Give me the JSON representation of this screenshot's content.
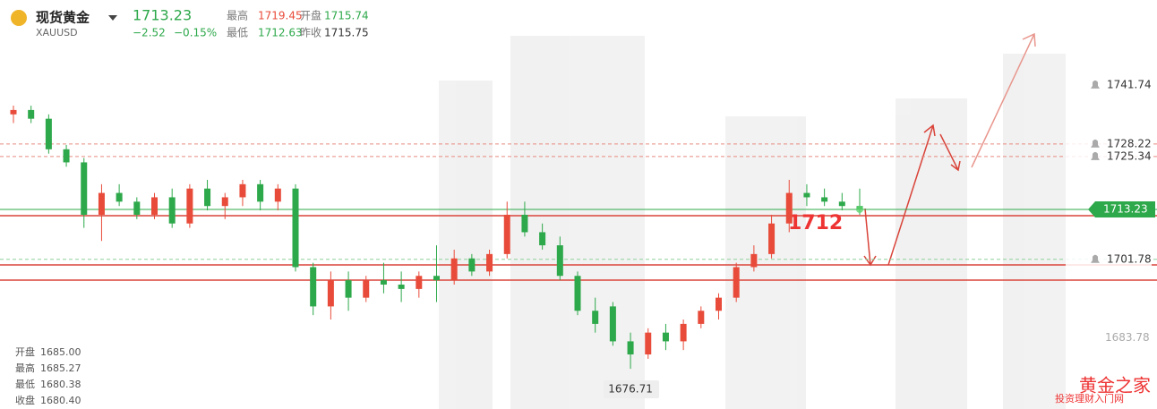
{
  "header": {
    "name": "现货黄金",
    "symbol": "XAUUSD",
    "price": "1713.23",
    "change": "−2.52",
    "change_pct": "−0.15%",
    "stats": [
      {
        "label": "最高",
        "value": "1719.45",
        "color": "#e84b3a"
      },
      {
        "label": "开盘",
        "value": "1715.74",
        "color": "#2da84a"
      },
      {
        "label": "最低",
        "value": "1712.63",
        "color": "#2da84a"
      },
      {
        "label": "昨收",
        "value": "1715.75",
        "color": "#333333"
      }
    ]
  },
  "hover_info": [
    {
      "label": "开盘",
      "value": "1685.00"
    },
    {
      "label": "最高",
      "value": "1685.27"
    },
    {
      "label": "最低",
      "value": "1680.38"
    },
    {
      "label": "收盘",
      "value": "1680.40"
    }
  ],
  "annotation": "1712",
  "watermark": {
    "title": "黄金之家",
    "subtitle": "投资理财入门网"
  },
  "chart_data": {
    "type": "candlestick",
    "up_color": "#e84b3a",
    "down_color": "#2da84a",
    "ylim": [
      1667.5,
      1761.2
    ],
    "low_label": 1676.71,
    "price_lines": [
      {
        "value": 1741.74,
        "color": "#999999",
        "style": "none",
        "label_type": "alert"
      },
      {
        "value": 1728.22,
        "color": "#e88a80",
        "style": "dashed",
        "label_type": "alert"
      },
      {
        "value": 1725.34,
        "color": "#e88a80",
        "style": "dashed",
        "label_type": "alert"
      },
      {
        "value": 1713.23,
        "color": "#2da84a",
        "style": "solid",
        "label_type": "current"
      },
      {
        "value": 1701.78,
        "color": "#8fd19e",
        "style": "dashed",
        "label_type": "alert"
      },
      {
        "value": 1683.78,
        "color": "#bbbbbb",
        "style": "none",
        "label_type": "plain"
      }
    ],
    "open": [
      1735,
      1736,
      1734,
      1727,
      1724,
      1712,
      1717,
      1715,
      1712,
      1716,
      1710,
      1718,
      1714,
      1716,
      1719,
      1715,
      1718,
      1700,
      1691,
      1697,
      1693,
      1697,
      1696,
      1695,
      1698,
      1697,
      1702,
      1699,
      1703,
      1712,
      1708,
      1705,
      1698,
      1690,
      1691,
      1683,
      1680,
      1685,
      1683,
      1687,
      1690,
      1693,
      1700,
      1703,
      1710,
      1717,
      1716,
      1715,
      1714
    ],
    "high": [
      1737,
      1737,
      1735,
      1728,
      1725,
      1719,
      1719,
      1716,
      1717,
      1718,
      1719,
      1720,
      1717,
      1720,
      1720,
      1719,
      1719,
      1701,
      1699,
      1699,
      1698,
      1701,
      1699,
      1699,
      1705,
      1704,
      1703,
      1704,
      1715,
      1715,
      1710,
      1707,
      1699,
      1693,
      1692,
      1685,
      1686,
      1687,
      1688,
      1691,
      1694,
      1701,
      1705,
      1712,
      1720,
      1719,
      1718,
      1717,
      1718
    ],
    "low": [
      1733,
      1733,
      1726,
      1723,
      1709,
      1706,
      1714,
      1711,
      1711,
      1709,
      1709,
      1713,
      1711,
      1714,
      1713,
      1713,
      1699,
      1689,
      1688,
      1690,
      1692,
      1694,
      1692,
      1693,
      1692,
      1696,
      1698,
      1698,
      1702,
      1707,
      1704,
      1697,
      1689,
      1685,
      1682,
      1676.71,
      1679,
      1681,
      1681,
      1686,
      1688,
      1692,
      1699,
      1702,
      1708,
      1714,
      1714,
      1713,
      1712
    ],
    "close": [
      1736,
      1734,
      1727,
      1724,
      1712,
      1717,
      1715,
      1712,
      1716,
      1710,
      1718,
      1714,
      1716,
      1719,
      1715,
      1718,
      1700,
      1691,
      1697,
      1693,
      1697,
      1696,
      1695,
      1698,
      1697,
      1702,
      1699,
      1703,
      1712,
      1708,
      1705,
      1698,
      1690,
      1687,
      1683,
      1680,
      1685,
      1683,
      1687,
      1690,
      1693,
      1700,
      1703,
      1710,
      1717,
      1716,
      1715,
      1714,
      1713.23
    ]
  }
}
